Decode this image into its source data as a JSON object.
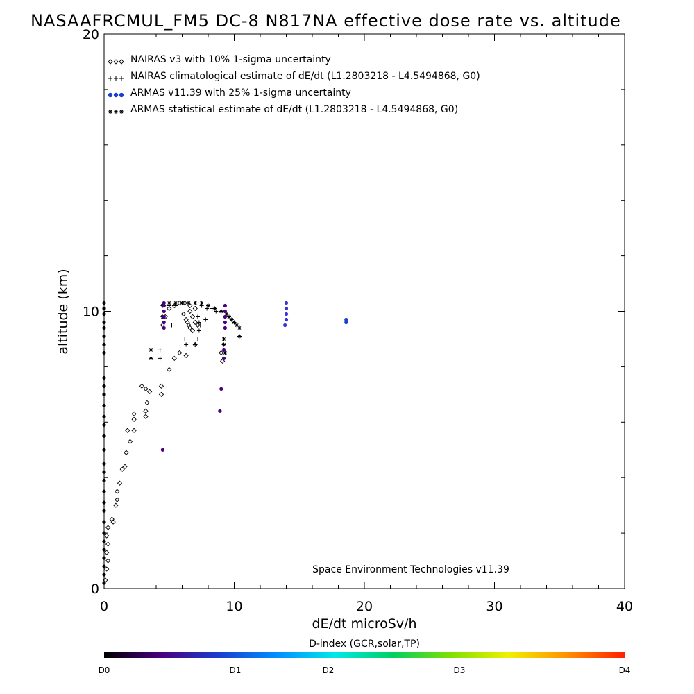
{
  "chart_data": {
    "type": "scatter",
    "title": "NASAAFRCMUL_FM5 DC-8   N817NA effective dose rate vs. altitude",
    "xlabel": "dE/dt microSv/h",
    "ylabel": "altitude (km)",
    "xlim": [
      0,
      40
    ],
    "ylim": [
      0,
      20
    ],
    "x_ticks": [
      "0",
      "10",
      "20",
      "30",
      "40"
    ],
    "y_ticks": [
      "0",
      "10",
      "20"
    ],
    "grid": false,
    "legend_position": "top-left",
    "legend": [
      {
        "label": "NAIRAS v3 with 10% 1-sigma uncertainty",
        "symbol": "diamond",
        "color": "#000000"
      },
      {
        "label": "NAIRAS climatological estimate of dE/dt (L1.2803218 - L4.5494868, G0)",
        "symbol": "plus",
        "color": "#000000"
      },
      {
        "label": "ARMAS v11.39 with 25% 1-sigma uncertainty",
        "symbol": "dot",
        "color": "#1a3fd0"
      },
      {
        "label": "ARMAS statistical estimate of dE/dt (L1.2803218 - L4.5494868, G0)",
        "symbol": "asterisk",
        "color": "#000000"
      }
    ],
    "annotation": "Space Environment Technologies v11.39",
    "colorbar": {
      "title": "D-index (GCR,solar,TP)",
      "ticks": [
        {
          "label": "D0",
          "value": 0
        },
        {
          "label": "D1",
          "value": 0.5
        },
        {
          "label": "D2",
          "value": 1
        },
        {
          "label": "D3",
          "value": 2
        },
        {
          "label": "D4",
          "value": 4
        }
      ],
      "colors": [
        "#000000",
        "#4a0080",
        "#1a3fd0",
        "#0090ff",
        "#00e8e8",
        "#00d060",
        "#80e000",
        "#f0f000",
        "#ff9000",
        "#ff2000"
      ]
    },
    "series": [
      {
        "name": "NAIRAS v3 with 10% 1-sigma uncertainty",
        "symbol": "diamond",
        "color": "#000000",
        "points": [
          [
            0.1,
            0.3
          ],
          [
            0.2,
            0.7
          ],
          [
            0.3,
            1.0
          ],
          [
            0.2,
            1.3
          ],
          [
            0.3,
            1.6
          ],
          [
            0.2,
            1.9
          ],
          [
            0.3,
            2.2
          ],
          [
            0.6,
            2.5
          ],
          [
            0.7,
            2.4
          ],
          [
            0.9,
            3.0
          ],
          [
            1.0,
            3.2
          ],
          [
            1.0,
            3.5
          ],
          [
            1.2,
            3.8
          ],
          [
            1.4,
            4.3
          ],
          [
            1.6,
            4.4
          ],
          [
            1.7,
            4.9
          ],
          [
            2.0,
            5.3
          ],
          [
            2.3,
            5.7
          ],
          [
            1.8,
            5.7
          ],
          [
            2.3,
            6.1
          ],
          [
            2.3,
            6.3
          ],
          [
            3.2,
            6.2
          ],
          [
            3.2,
            6.4
          ],
          [
            3.3,
            6.7
          ],
          [
            3.5,
            7.1
          ],
          [
            3.2,
            7.2
          ],
          [
            4.4,
            7.0
          ],
          [
            2.9,
            7.3
          ],
          [
            4.4,
            7.3
          ],
          [
            5.0,
            7.9
          ],
          [
            5.4,
            8.3
          ],
          [
            5.8,
            8.5
          ],
          [
            6.3,
            8.4
          ],
          [
            7.0,
            8.8
          ],
          [
            4.5,
            9.5
          ],
          [
            4.7,
            9.8
          ],
          [
            5.0,
            10.1
          ],
          [
            5.4,
            10.2
          ],
          [
            5.8,
            10.3
          ],
          [
            6.2,
            10.3
          ],
          [
            6.6,
            10.2
          ],
          [
            7.0,
            10.1
          ],
          [
            6.1,
            9.9
          ],
          [
            6.3,
            9.7
          ],
          [
            6.4,
            9.6
          ],
          [
            6.5,
            9.5
          ],
          [
            6.6,
            9.4
          ],
          [
            6.8,
            9.3
          ],
          [
            6.6,
            10.0
          ],
          [
            6.8,
            9.8
          ],
          [
            7.0,
            9.6
          ],
          [
            7.2,
            9.5
          ],
          [
            9.1,
            8.2
          ],
          [
            9.0,
            8.5
          ]
        ]
      },
      {
        "name": "NAIRAS climatological estimate of dE/dt (L1.2803218 - L4.5494868, G0)",
        "symbol": "plus",
        "color": "#000000",
        "points": [
          [
            4.3,
            8.3
          ],
          [
            4.3,
            8.6
          ],
          [
            5.2,
            9.5
          ],
          [
            7.2,
            9.0
          ],
          [
            7.0,
            8.8
          ],
          [
            6.3,
            8.8
          ],
          [
            6.2,
            9.0
          ],
          [
            4.6,
            10.2
          ],
          [
            5.0,
            10.2
          ],
          [
            5.5,
            10.2
          ],
          [
            6.2,
            10.3
          ],
          [
            7.0,
            10.3
          ],
          [
            7.5,
            10.2
          ],
          [
            7.9,
            10.1
          ],
          [
            8.3,
            10.1
          ],
          [
            8.6,
            10.0
          ],
          [
            7.2,
            9.8
          ],
          [
            7.3,
            9.6
          ],
          [
            7.4,
            9.5
          ],
          [
            7.3,
            9.3
          ],
          [
            7.6,
            9.9
          ],
          [
            7.8,
            9.7
          ]
        ]
      },
      {
        "name": "ARMAS statistical estimate of dE/dt (L1.2803218 - L4.5494868, G0)",
        "symbol": "asterisk",
        "color": "#000000",
        "points": [
          [
            3.6,
            8.3
          ],
          [
            3.6,
            8.6
          ],
          [
            9.3,
            8.5
          ],
          [
            9.2,
            8.8
          ],
          [
            9.2,
            9.0
          ],
          [
            10.4,
            9.1
          ],
          [
            4.5,
            10.2
          ],
          [
            4.5,
            9.8
          ],
          [
            5.0,
            10.3
          ],
          [
            5.5,
            10.3
          ],
          [
            6.0,
            10.3
          ],
          [
            6.5,
            10.3
          ],
          [
            7.0,
            10.3
          ],
          [
            7.5,
            10.3
          ],
          [
            8.0,
            10.2
          ],
          [
            8.5,
            10.1
          ],
          [
            9.0,
            10.0
          ],
          [
            9.4,
            9.9
          ],
          [
            9.6,
            9.8
          ],
          [
            9.8,
            9.7
          ],
          [
            10.0,
            9.6
          ],
          [
            10.2,
            9.5
          ],
          [
            10.4,
            9.4
          ]
        ]
      },
      {
        "name": "ARMAS v11.39 with 25% 1-sigma uncertainty",
        "symbol": "dot",
        "color": "#1a3fd0",
        "points": [
          [
            0,
            0.2
          ],
          [
            0,
            0.5
          ],
          [
            0,
            0.8
          ],
          [
            0,
            1.1
          ],
          [
            0,
            1.4
          ],
          [
            0,
            1.7
          ],
          [
            0,
            2.0
          ],
          [
            0,
            2.4
          ],
          [
            0,
            2.8
          ],
          [
            0,
            3.1
          ],
          [
            0,
            3.5
          ],
          [
            0,
            3.9
          ],
          [
            0,
            4.2
          ],
          [
            0,
            4.5
          ],
          [
            0,
            5.0
          ],
          [
            0,
            5.5
          ],
          [
            0,
            5.9
          ],
          [
            0,
            6.2
          ],
          [
            0,
            6.6
          ],
          [
            0,
            7.0
          ],
          [
            0,
            7.3
          ],
          [
            0,
            7.6
          ],
          [
            0,
            8.5
          ],
          [
            0,
            8.8
          ],
          [
            0,
            9.1
          ],
          [
            0,
            9.4
          ],
          [
            0,
            9.6
          ],
          [
            0,
            9.9
          ],
          [
            0,
            10.1
          ],
          [
            0,
            10.3
          ],
          [
            4.5,
            5.0
          ],
          [
            8.9,
            6.4
          ],
          [
            9.0,
            7.2
          ],
          [
            9.2,
            8.3
          ],
          [
            9.2,
            8.6
          ],
          [
            4.6,
            9.4
          ],
          [
            4.6,
            9.6
          ],
          [
            4.6,
            9.8
          ],
          [
            4.6,
            10.0
          ],
          [
            4.6,
            10.2
          ],
          [
            4.6,
            10.3
          ],
          [
            9.3,
            9.4
          ],
          [
            9.3,
            9.6
          ],
          [
            9.3,
            9.8
          ],
          [
            9.3,
            10.0
          ],
          [
            9.3,
            10.2
          ],
          [
            13.9,
            9.5
          ],
          [
            14.0,
            9.7
          ],
          [
            14.0,
            9.9
          ],
          [
            14.0,
            10.1
          ],
          [
            14.0,
            10.3
          ],
          [
            18.6,
            9.6
          ],
          [
            18.6,
            9.7
          ]
        ]
      }
    ]
  }
}
